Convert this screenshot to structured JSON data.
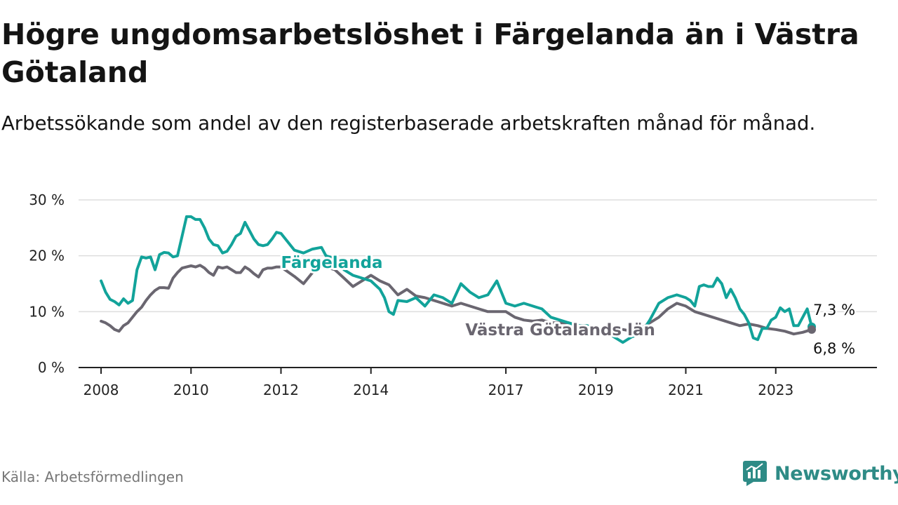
{
  "header": {
    "title": "Högre ungdomsarbetslöshet i Färgelanda än i Västra Götaland",
    "subtitle": "Arbetssökande som andel av den registerbaserade arbetskraften månad för månad."
  },
  "footer": {
    "source": "Källa: Arbetsförmedlingen",
    "brand": "Newsworthy"
  },
  "colors": {
    "fargelanda": "#12a39a",
    "vastra": "#6a6670",
    "grid": "#dddddd",
    "axis": "#222222",
    "brand": "#2e8b86"
  },
  "chart_data": {
    "type": "line",
    "title": "Högre ungdomsarbetslöshet i Färgelanda än i Västra Götaland",
    "xlabel": "",
    "ylabel": "",
    "ylim": [
      0,
      30
    ],
    "xlim": [
      2007.5,
      2025.25
    ],
    "yticks": [
      0,
      10,
      20,
      30
    ],
    "ytick_labels": [
      "0 %",
      "10 %",
      "20 %",
      "30 %"
    ],
    "xticks": [
      2008,
      2010,
      2012,
      2014,
      2017,
      2019,
      2021,
      2023
    ],
    "xtick_labels": [
      "2008",
      "2010",
      "2012",
      "2014",
      "2017",
      "2019",
      "2021",
      "2023"
    ],
    "grid": true,
    "series": [
      {
        "name": "Färgelanda",
        "label": "Färgelanda",
        "end_label": "7,3 %",
        "x": [
          2008.0,
          2008.1,
          2008.2,
          2008.3,
          2008.4,
          2008.5,
          2008.6,
          2008.7,
          2008.8,
          2008.9,
          2009.0,
          2009.1,
          2009.2,
          2009.3,
          2009.4,
          2009.5,
          2009.6,
          2009.7,
          2009.8,
          2009.9,
          2010.0,
          2010.1,
          2010.2,
          2010.3,
          2010.4,
          2010.5,
          2010.6,
          2010.7,
          2010.8,
          2010.9,
          2011.0,
          2011.1,
          2011.2,
          2011.3,
          2011.4,
          2011.5,
          2011.6,
          2011.7,
          2011.8,
          2011.9,
          2012.0,
          2012.3,
          2012.5,
          2012.7,
          2012.9,
          2013.0,
          2013.2,
          2013.4,
          2013.6,
          2013.8,
          2014.0,
          2014.2,
          2014.3,
          2014.4,
          2014.5,
          2014.6,
          2014.8,
          2015.0,
          2015.2,
          2015.4,
          2015.6,
          2015.8,
          2016.0,
          2016.2,
          2016.4,
          2016.6,
          2016.8,
          2017.0,
          2017.2,
          2017.4,
          2017.6,
          2017.8,
          2018.0,
          2018.2,
          2018.4,
          2018.6,
          2018.8,
          2019.0,
          2019.2,
          2019.4,
          2019.6,
          2019.8,
          2020.0,
          2020.2,
          2020.4,
          2020.6,
          2020.8,
          2021.0,
          2021.1,
          2021.2,
          2021.3,
          2021.4,
          2021.5,
          2021.6,
          2021.7,
          2021.8,
          2021.9,
          2022.0,
          2022.1,
          2022.2,
          2022.3,
          2022.4,
          2022.5,
          2022.6,
          2022.7,
          2022.8,
          2022.9,
          2023.0,
          2023.1,
          2023.2,
          2023.3,
          2023.4,
          2023.5,
          2023.6,
          2023.7,
          2023.8
        ],
        "values": [
          15.5,
          13.5,
          12.2,
          11.8,
          11.2,
          12.3,
          11.5,
          12.0,
          17.5,
          19.8,
          19.6,
          19.8,
          17.5,
          20.2,
          20.6,
          20.5,
          19.8,
          20.0,
          23.5,
          27.0,
          27.0,
          26.5,
          26.5,
          25.0,
          23.0,
          22.0,
          21.8,
          20.5,
          20.8,
          22.0,
          23.5,
          24.0,
          26.0,
          24.5,
          23.0,
          22.0,
          21.8,
          22.0,
          23.0,
          24.2,
          24.0,
          21.0,
          20.5,
          21.2,
          21.5,
          20.0,
          19.5,
          17.5,
          16.5,
          16.0,
          15.5,
          14.0,
          12.5,
          10.0,
          9.5,
          12.0,
          11.8,
          12.5,
          11.0,
          13.0,
          12.5,
          11.5,
          15.0,
          13.5,
          12.5,
          13.0,
          15.5,
          11.5,
          11.0,
          11.5,
          11.0,
          10.5,
          9.0,
          8.5,
          8.0,
          7.5,
          7.5,
          7.0,
          6.5,
          5.5,
          4.5,
          5.5,
          6.0,
          8.5,
          11.5,
          12.5,
          13.0,
          12.5,
          12.0,
          11.0,
          14.5,
          14.8,
          14.5,
          14.5,
          16.0,
          15.0,
          12.5,
          14.0,
          12.5,
          10.5,
          9.5,
          8.0,
          5.3,
          5.0,
          7.0,
          7.0,
          8.5,
          9.0,
          10.7,
          10.0,
          10.5,
          7.5,
          7.5,
          9.0,
          10.5,
          7.3
        ]
      },
      {
        "name": "Västra Götalands län",
        "label": "Västra Götalands län",
        "end_label": "6,8 %",
        "x": [
          2008.0,
          2008.1,
          2008.2,
          2008.3,
          2008.4,
          2008.5,
          2008.6,
          2008.7,
          2008.8,
          2008.9,
          2009.0,
          2009.1,
          2009.2,
          2009.3,
          2009.4,
          2009.5,
          2009.6,
          2009.7,
          2009.8,
          2009.9,
          2010.0,
          2010.1,
          2010.2,
          2010.3,
          2010.4,
          2010.5,
          2010.6,
          2010.7,
          2010.8,
          2010.9,
          2011.0,
          2011.1,
          2011.2,
          2011.3,
          2011.4,
          2011.5,
          2011.6,
          2011.7,
          2011.8,
          2011.9,
          2012.0,
          2012.3,
          2012.5,
          2012.7,
          2012.9,
          2013.0,
          2013.2,
          2013.4,
          2013.6,
          2013.8,
          2014.0,
          2014.2,
          2014.4,
          2014.6,
          2014.8,
          2015.0,
          2015.2,
          2015.4,
          2015.6,
          2015.8,
          2016.0,
          2016.2,
          2016.4,
          2016.6,
          2016.8,
          2017.0,
          2017.2,
          2017.4,
          2017.6,
          2017.8,
          2018.0,
          2018.2,
          2018.4,
          2018.6,
          2018.8,
          2019.0,
          2019.2,
          2019.4,
          2019.6,
          2019.8,
          2020.0,
          2020.2,
          2020.4,
          2020.6,
          2020.8,
          2021.0,
          2021.2,
          2021.4,
          2021.6,
          2021.8,
          2022.0,
          2022.2,
          2022.4,
          2022.6,
          2022.8,
          2023.0,
          2023.2,
          2023.4,
          2023.6,
          2023.8
        ],
        "values": [
          8.3,
          8.0,
          7.5,
          6.8,
          6.5,
          7.5,
          8.0,
          9.0,
          10.0,
          10.8,
          12.0,
          13.0,
          13.8,
          14.3,
          14.3,
          14.2,
          16.0,
          17.0,
          17.8,
          18.0,
          18.2,
          18.0,
          18.3,
          17.8,
          17.0,
          16.5,
          18.0,
          17.8,
          18.0,
          17.5,
          17.0,
          17.0,
          18.0,
          17.5,
          16.8,
          16.2,
          17.5,
          17.8,
          17.8,
          18.0,
          18.0,
          16.3,
          15.0,
          17.0,
          18.0,
          18.0,
          17.5,
          16.0,
          14.5,
          15.5,
          16.5,
          15.5,
          14.8,
          13.0,
          14.0,
          12.8,
          12.5,
          12.0,
          11.5,
          11.0,
          11.5,
          11.0,
          10.5,
          10.0,
          10.0,
          10.0,
          9.0,
          8.5,
          8.3,
          8.5,
          8.0,
          8.0,
          8.0,
          7.5,
          7.5,
          7.0,
          7.0,
          7.0,
          6.8,
          6.5,
          7.0,
          8.0,
          9.0,
          10.5,
          11.5,
          11.0,
          10.0,
          9.5,
          9.0,
          8.5,
          8.0,
          7.5,
          7.8,
          7.5,
          7.0,
          6.8,
          6.5,
          6.0,
          6.3,
          6.8
        ]
      }
    ]
  }
}
